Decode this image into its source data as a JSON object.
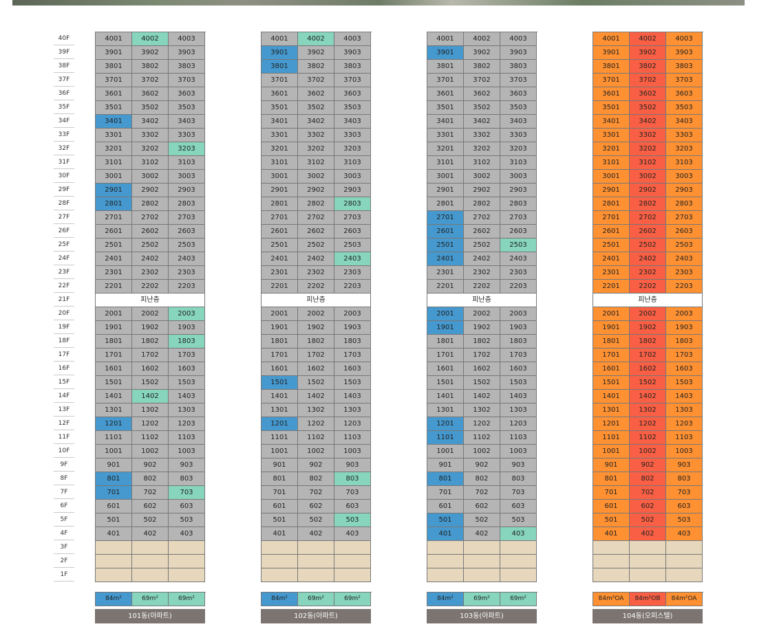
{
  "floors": [
    "40F",
    "39F",
    "38F",
    "37F",
    "36F",
    "35F",
    "34F",
    "33F",
    "32F",
    "31F",
    "30F",
    "29F",
    "28F",
    "27F",
    "26F",
    "25F",
    "24F",
    "23F",
    "22F",
    "21F",
    "20F",
    "19F",
    "18F",
    "17F",
    "16F",
    "15F",
    "14F",
    "13F",
    "12F",
    "11F",
    "10F",
    "9F",
    "8F",
    "7F",
    "6F",
    "5F",
    "4F",
    "3F",
    "2F",
    "1F"
  ],
  "refuge_floor": "21F",
  "refuge_label": "피난층",
  "commercial_floors": [
    "3F",
    "2F",
    "1F"
  ],
  "colors": {
    "grey": "#b5b5b5",
    "blue": "#4599cf",
    "teal": "#86d5bc",
    "orange": "#ff9132",
    "red": "#f85f44",
    "commercial": "#e7d8bd",
    "name_bg": "#7b7471"
  },
  "buildings": [
    {
      "name": "101동(아파트)",
      "default_color": "grey",
      "legend": [
        {
          "label": "84m²",
          "color": "blue"
        },
        {
          "label": "69m²",
          "color": "teal"
        },
        {
          "label": "69m²",
          "color": "teal"
        }
      ],
      "highlights": {
        "4002": "teal",
        "3401": "blue",
        "3203": "teal",
        "2901": "blue",
        "2801": "blue",
        "2003": "teal",
        "1803": "teal",
        "1402": "teal",
        "1201": "blue",
        "801": "blue",
        "701": "blue",
        "703": "teal"
      }
    },
    {
      "name": "102동(아파트)",
      "default_color": "grey",
      "legend": [
        {
          "label": "84m²",
          "color": "blue"
        },
        {
          "label": "69m²",
          "color": "teal"
        },
        {
          "label": "69m²",
          "color": "teal"
        }
      ],
      "highlights": {
        "4002": "teal",
        "3901": "blue",
        "3801": "blue",
        "2803": "teal",
        "2403": "teal",
        "1501": "blue",
        "1201": "blue",
        "803": "teal",
        "503": "teal"
      }
    },
    {
      "name": "103동(아파트)",
      "default_color": "grey",
      "legend": [
        {
          "label": "84m²",
          "color": "blue"
        },
        {
          "label": "69m²",
          "color": "teal"
        },
        {
          "label": "69m²",
          "color": "teal"
        }
      ],
      "highlights": {
        "3901": "blue",
        "2701": "blue",
        "2601": "blue",
        "2501": "blue",
        "2503": "teal",
        "2401": "blue",
        "2001": "blue",
        "1901": "blue",
        "1201": "blue",
        "1101": "blue",
        "801": "blue",
        "501": "blue",
        "401": "blue",
        "403": "teal"
      }
    },
    {
      "name": "104동(오피스텔)",
      "default_color": "orange",
      "column_colors": [
        "orange",
        "red",
        "orange"
      ],
      "legend": [
        {
          "label": "84m²OA",
          "color": "orange"
        },
        {
          "label": "84m²OB",
          "color": "red"
        },
        {
          "label": "84m²OA",
          "color": "orange"
        }
      ],
      "highlights": {}
    }
  ]
}
